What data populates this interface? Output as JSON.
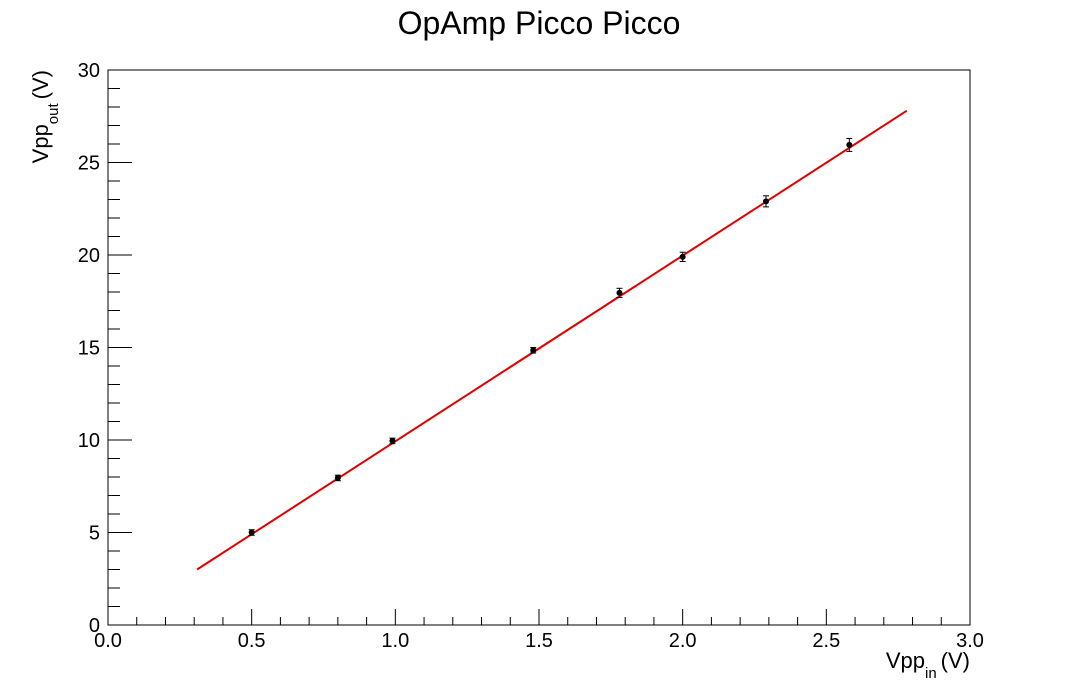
{
  "chart_data": {
    "type": "scatter",
    "title": "OpAmp Picco Picco",
    "xlabel": {
      "main": "Vpp",
      "sub": "in",
      "unit": "(V)"
    },
    "ylabel": {
      "main": "Vpp",
      "sub": "out",
      "unit": "(V)"
    },
    "xlim": [
      0,
      3
    ],
    "ylim": [
      0,
      30
    ],
    "x_ticks": [
      0,
      0.5,
      1,
      1.5,
      2,
      2.5,
      3
    ],
    "x_tick_labels": [
      "0.0",
      "0.5",
      "1.0",
      "1.5",
      "2.0",
      "2.5",
      "3.0"
    ],
    "y_ticks": [
      0,
      5,
      10,
      15,
      20,
      25,
      30
    ],
    "y_tick_labels": [
      "0",
      "5",
      "10",
      "15",
      "20",
      "25",
      "30"
    ],
    "grid": false,
    "legend": "none",
    "series": [
      {
        "x": [
          0.5,
          0.8,
          0.99,
          1.48,
          1.78,
          2.0,
          2.29,
          2.58
        ],
        "y": [
          5.0,
          7.95,
          9.95,
          14.85,
          17.95,
          19.9,
          22.9,
          25.95
        ],
        "y_err": [
          0.15,
          0.15,
          0.15,
          0.15,
          0.25,
          0.25,
          0.3,
          0.35
        ],
        "color": "#000000"
      }
    ],
    "fit_line": {
      "x": [
        0.31,
        2.78
      ],
      "y": [
        3.0,
        27.8
      ],
      "color": "#e00000"
    }
  }
}
